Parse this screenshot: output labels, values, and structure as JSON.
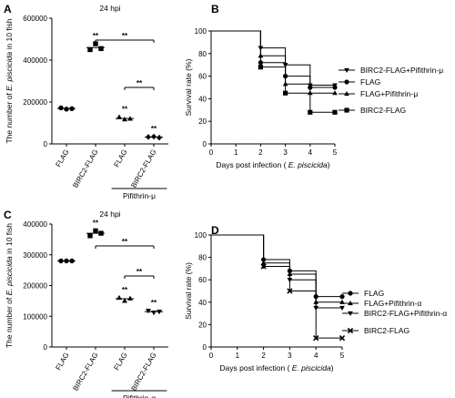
{
  "chart_data": [
    {
      "panel": "A",
      "type": "scatter",
      "title": "24 hpi",
      "ylabel_prefix": "The number of ",
      "ylabel_species": "E. piscicida",
      "ylabel_suffix": " in 10 fish",
      "ylim": [
        0,
        600000
      ],
      "yticks": [
        "0",
        "200000",
        "400000",
        "600000"
      ],
      "yticks_values": [
        0,
        200000,
        400000,
        600000
      ],
      "categories": [
        "FLAG",
        "BIRC2-FLAG",
        "FLAG",
        "BIRC2-FLAG"
      ],
      "group_label": "Pifithrin-μ",
      "series": [
        {
          "marker": "circle",
          "values": [
            172000,
            166000,
            168000
          ],
          "mean": 169000
        },
        {
          "marker": "square",
          "values": [
            450000,
            478000,
            455000
          ],
          "mean": 460000
        },
        {
          "marker": "triangle-up",
          "values": [
            128000,
            117000,
            120000
          ],
          "mean": 121000
        },
        {
          "marker": "diamond",
          "values": [
            33000,
            35000,
            30000
          ],
          "mean": 32000
        }
      ],
      "point_stars": [
        "",
        "**",
        "**",
        "**"
      ],
      "brackets": [
        {
          "from": 1,
          "to": 3,
          "label": "**"
        },
        {
          "from": 2,
          "to": 3,
          "label": "**"
        }
      ]
    },
    {
      "panel": "B",
      "type": "line",
      "xlabel_prefix": "Days post infection ( ",
      "xlabel_species": "E. piscicida",
      "xlabel_suffix": ")",
      "ylabel": "Survival rate (%)",
      "xlim": [
        0,
        5
      ],
      "ylim": [
        0,
        100
      ],
      "xticks": [
        "0",
        "1",
        "2",
        "3",
        "4",
        "5"
      ],
      "yticks": [
        "0",
        "20",
        "40",
        "60",
        "80",
        "100"
      ],
      "series": [
        {
          "name": "BIRC2-FLAG+Pifithrin-μ",
          "marker": "triangle-down",
          "x": [
            0,
            2,
            3,
            4,
            5
          ],
          "y": [
            100,
            85,
            70,
            52,
            52
          ]
        },
        {
          "name": "FLAG",
          "marker": "circle",
          "x": [
            0,
            2,
            3,
            4,
            5
          ],
          "y": [
            100,
            72,
            60,
            50,
            50
          ]
        },
        {
          "name": "FLAG+Pifithrin-μ",
          "marker": "triangle-up",
          "x": [
            0,
            2,
            3,
            4,
            5
          ],
          "y": [
            100,
            78,
            53,
            45,
            45
          ]
        },
        {
          "name": "BIRC2-FLAG",
          "marker": "square",
          "x": [
            0,
            2,
            3,
            4,
            5
          ],
          "y": [
            100,
            68,
            45,
            28,
            28
          ]
        }
      ]
    },
    {
      "panel": "C",
      "type": "scatter",
      "title": "24 hpi",
      "ylabel_prefix": "The number of ",
      "ylabel_species": "E. piscicida",
      "ylabel_suffix": " in 10 fish",
      "ylim": [
        0,
        400000
      ],
      "yticks": [
        "0",
        "100000",
        "200000",
        "300000",
        "400000"
      ],
      "yticks_values": [
        0,
        100000,
        200000,
        300000,
        400000
      ],
      "categories": [
        "FLAG",
        "BIRC2-FLAG",
        "FLAG",
        "BIRC2-FLAG"
      ],
      "group_label": "Pifithrin-α",
      "series": [
        {
          "marker": "circle",
          "values": [
            280000,
            280000,
            280000
          ],
          "mean": 280000
        },
        {
          "marker": "square",
          "values": [
            362000,
            378000,
            370000
          ],
          "mean": 370000
        },
        {
          "marker": "triangle-up",
          "values": [
            160000,
            150000,
            158000
          ],
          "mean": 157000
        },
        {
          "marker": "triangle-down",
          "values": [
            118000,
            112000,
            115000
          ],
          "mean": 115000
        }
      ],
      "point_stars": [
        "",
        "**",
        "**",
        "**"
      ],
      "brackets": [
        {
          "from": 1,
          "to": 3,
          "label": "**"
        },
        {
          "from": 2,
          "to": 3,
          "label": "**"
        }
      ]
    },
    {
      "panel": "D",
      "type": "line",
      "xlabel_prefix": "Days post infection ( ",
      "xlabel_species": "E. piscicida",
      "xlabel_suffix": ")",
      "ylabel": "Survival rate (%)",
      "xlim": [
        0,
        5
      ],
      "ylim": [
        0,
        100
      ],
      "xticks": [
        "0",
        "1",
        "2",
        "3",
        "4",
        "5"
      ],
      "yticks": [
        "0",
        "20",
        "40",
        "60",
        "80",
        "100"
      ],
      "series": [
        {
          "name": "FLAG",
          "marker": "circle",
          "x": [
            0,
            2,
            3,
            4,
            5
          ],
          "y": [
            100,
            78,
            68,
            45,
            45
          ]
        },
        {
          "name": "FLAG+Pifithrin-α",
          "marker": "triangle-up",
          "x": [
            0,
            2,
            3,
            4,
            5
          ],
          "y": [
            100,
            75,
            65,
            40,
            40
          ]
        },
        {
          "name": "BIRC2-FLAG+Pifithrin-α",
          "marker": "triangle-down",
          "x": [
            0,
            2,
            3,
            4,
            5
          ],
          "y": [
            100,
            72,
            60,
            35,
            35
          ]
        },
        {
          "name": "BIRC2-FLAG",
          "marker": "x",
          "x": [
            0,
            2,
            3,
            4,
            5
          ],
          "y": [
            100,
            72,
            50,
            8,
            8
          ]
        }
      ]
    }
  ]
}
